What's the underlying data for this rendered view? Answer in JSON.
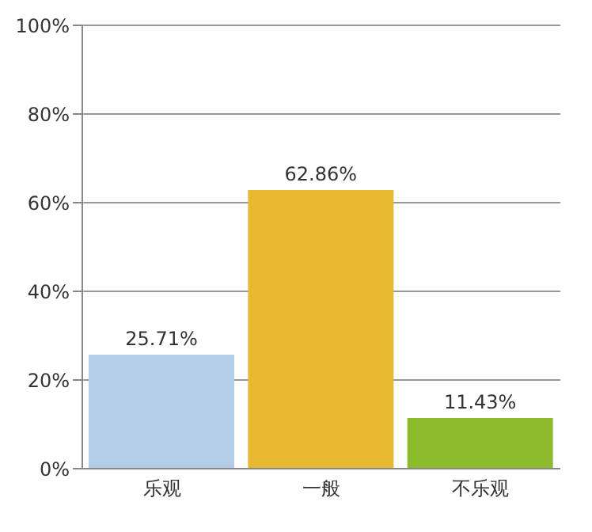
{
  "chart_data": {
    "type": "bar",
    "categories": [
      "乐观",
      "一般",
      "不乐观"
    ],
    "values": [
      25.71,
      62.86,
      11.43
    ],
    "colors": [
      "#b4cde6",
      "#e8b830",
      "#8cbc2c"
    ],
    "value_labels": [
      "25.71%",
      "62.86%",
      "11.43%"
    ],
    "ylim": [
      0,
      100
    ],
    "yticks": [
      {
        "value": 0,
        "label": "0%"
      },
      {
        "value": 20,
        "label": "20%"
      },
      {
        "value": 40,
        "label": "40%"
      },
      {
        "value": 60,
        "label": "60%"
      },
      {
        "value": 80,
        "label": "80%"
      },
      {
        "value": 100,
        "label": "100%"
      }
    ],
    "grid": "y"
  }
}
